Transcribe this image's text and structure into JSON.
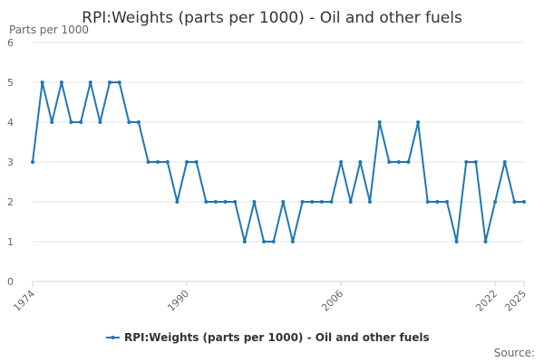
{
  "chart_data": {
    "type": "line",
    "title": "RPI:Weights (parts per 1000) - Oil and other fuels",
    "ylabel": "Parts per 1000",
    "xlabel": "",
    "ylim": [
      0,
      6
    ],
    "yticks": [
      0,
      1,
      2,
      3,
      4,
      5,
      6
    ],
    "xlim": [
      1974,
      2025
    ],
    "xticks": [
      1974,
      1990,
      2006,
      2022,
      2025
    ],
    "grid": true,
    "legend_position": "bottom",
    "source_label": "Source:",
    "colors": {
      "series": "#1f77b4",
      "grid": "#e6e6e6",
      "axis": "#ccd6eb"
    },
    "series": [
      {
        "name": "RPI:Weights (parts per 1000) - Oil and other fuels",
        "x": [
          1974,
          1975,
          1976,
          1977,
          1978,
          1979,
          1980,
          1981,
          1982,
          1983,
          1984,
          1985,
          1986,
          1987,
          1988,
          1989,
          1990,
          1991,
          1992,
          1993,
          1994,
          1995,
          1996,
          1997,
          1998,
          1999,
          2000,
          2001,
          2002,
          2003,
          2004,
          2005,
          2006,
          2007,
          2008,
          2009,
          2010,
          2011,
          2012,
          2013,
          2014,
          2015,
          2016,
          2017,
          2018,
          2019,
          2020,
          2021,
          2022,
          2023,
          2024,
          2025
        ],
        "values": [
          3,
          5,
          4,
          5,
          4,
          4,
          5,
          4,
          5,
          5,
          4,
          4,
          3,
          3,
          3,
          2,
          3,
          3,
          2,
          2,
          2,
          2,
          1,
          2,
          1,
          1,
          2,
          1,
          2,
          2,
          2,
          2,
          3,
          2,
          3,
          2,
          4,
          3,
          3,
          3,
          4,
          2,
          2,
          2,
          1,
          3,
          3,
          1,
          2,
          3,
          2,
          2
        ]
      }
    ]
  }
}
